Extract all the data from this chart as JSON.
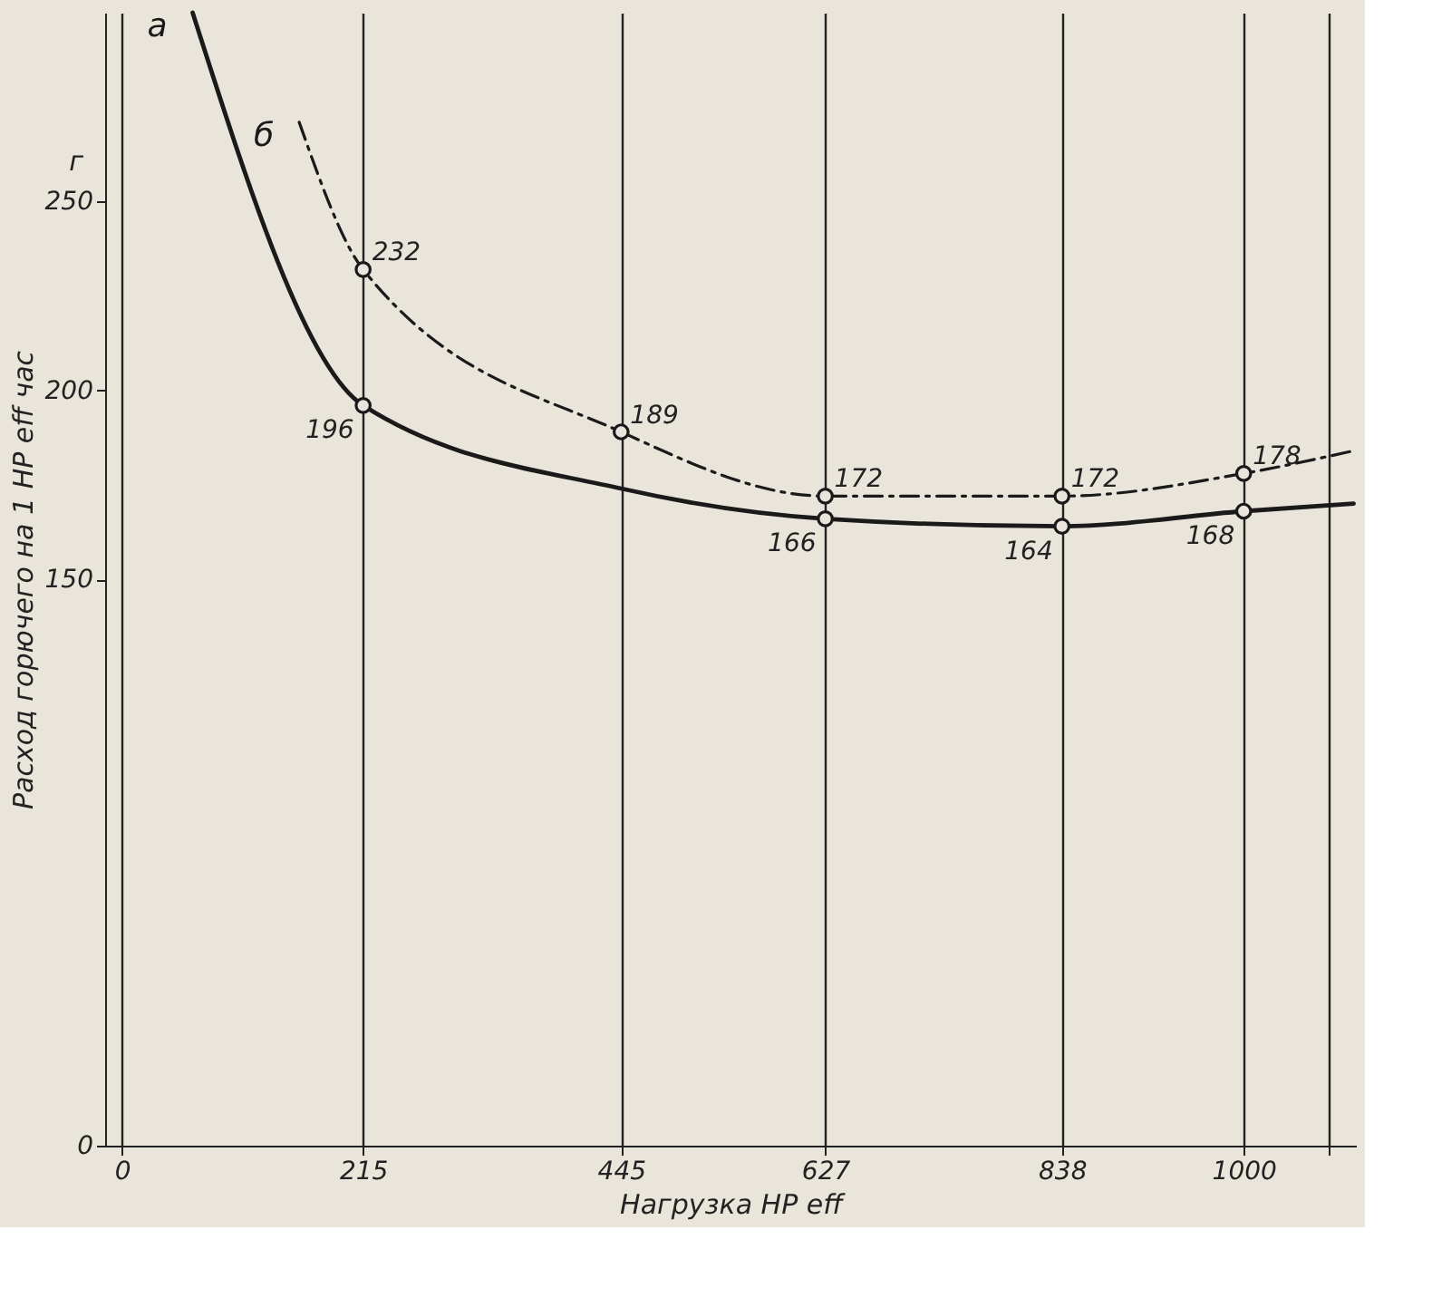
{
  "chart_data": {
    "type": "line",
    "xlabel": "Нагрузка HP eff",
    "ylabel": "Расход горючего на 1 HP eff час",
    "annotations": [
      "г"
    ],
    "x": [
      63,
      215,
      445,
      627,
      838,
      1000,
      1098
    ],
    "series": [
      {
        "name": "а",
        "color": "#1a1a1a",
        "line_style": "solid",
        "values": [
          300,
          196,
          174,
          166,
          164,
          168,
          170
        ],
        "value_labels": [
          null,
          "196",
          null,
          "166",
          "164",
          "168",
          null
        ]
      },
      {
        "name": "б",
        "color": "#1a1a1a",
        "line_style": "dashed",
        "x": [
          158,
          215,
          445,
          627,
          838,
          1000,
          1098
        ],
        "values": [
          271,
          232,
          189,
          172,
          172,
          178,
          184
        ],
        "value_labels": [
          null,
          "232",
          "189",
          "172",
          "172",
          "178",
          null
        ]
      }
    ],
    "xlim": [
      -15,
      1100
    ],
    "xticks": [
      0,
      215,
      445,
      627,
      838,
      1000,
      {
        "value": 1075,
        "label": null
      }
    ],
    "ylim": [
      0,
      300
    ],
    "yticks": [
      0,
      150,
      200,
      250
    ],
    "grid": "x",
    "marker": "circle"
  }
}
